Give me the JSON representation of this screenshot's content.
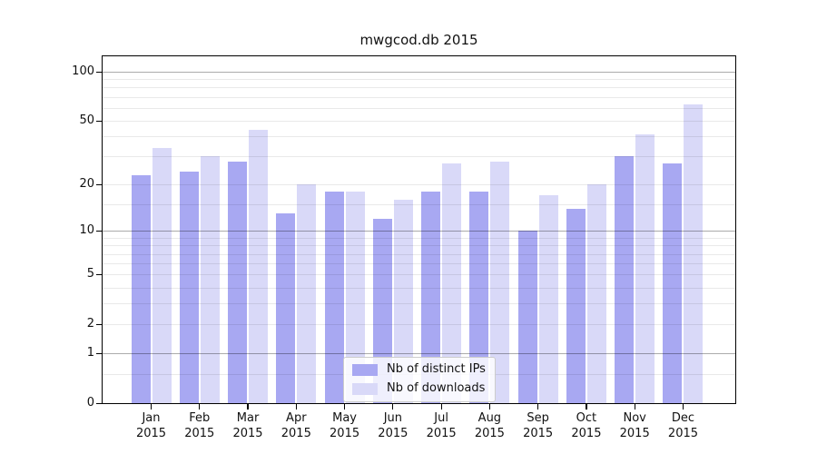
{
  "chart_data": {
    "type": "bar",
    "title": "mwgcod.db 2015",
    "categories": [
      "Jan 2015",
      "Feb 2015",
      "Mar 2015",
      "Apr 2015",
      "May 2015",
      "Jun 2015",
      "Jul 2015",
      "Aug 2015",
      "Sep 2015",
      "Oct 2015",
      "Nov 2015",
      "Dec 2015"
    ],
    "series": [
      {
        "name": "Nb of distinct IPs",
        "color": "#a8a8f2",
        "values": [
          23,
          24,
          28,
          13,
          18,
          12,
          18,
          18,
          10,
          14,
          30,
          27
        ]
      },
      {
        "name": "Nb of downloads",
        "color": "#d9d9f8",
        "values": [
          34,
          30,
          44,
          20,
          18,
          16,
          27,
          28,
          17,
          20,
          41,
          63
        ]
      }
    ],
    "xlabel": "",
    "ylabel": "",
    "yscale": "log1p",
    "ylim": [
      0,
      124
    ],
    "yticks": [
      0,
      1,
      2,
      5,
      10,
      20,
      50,
      100
    ],
    "major_gridlines": [
      1,
      10,
      100
    ],
    "minor_gridlines": [
      0.5,
      2,
      3,
      4,
      5,
      6,
      7,
      8,
      9,
      15,
      20,
      30,
      40,
      50,
      60,
      70,
      80,
      90
    ],
    "grid": true,
    "legend_position": "lower center"
  }
}
